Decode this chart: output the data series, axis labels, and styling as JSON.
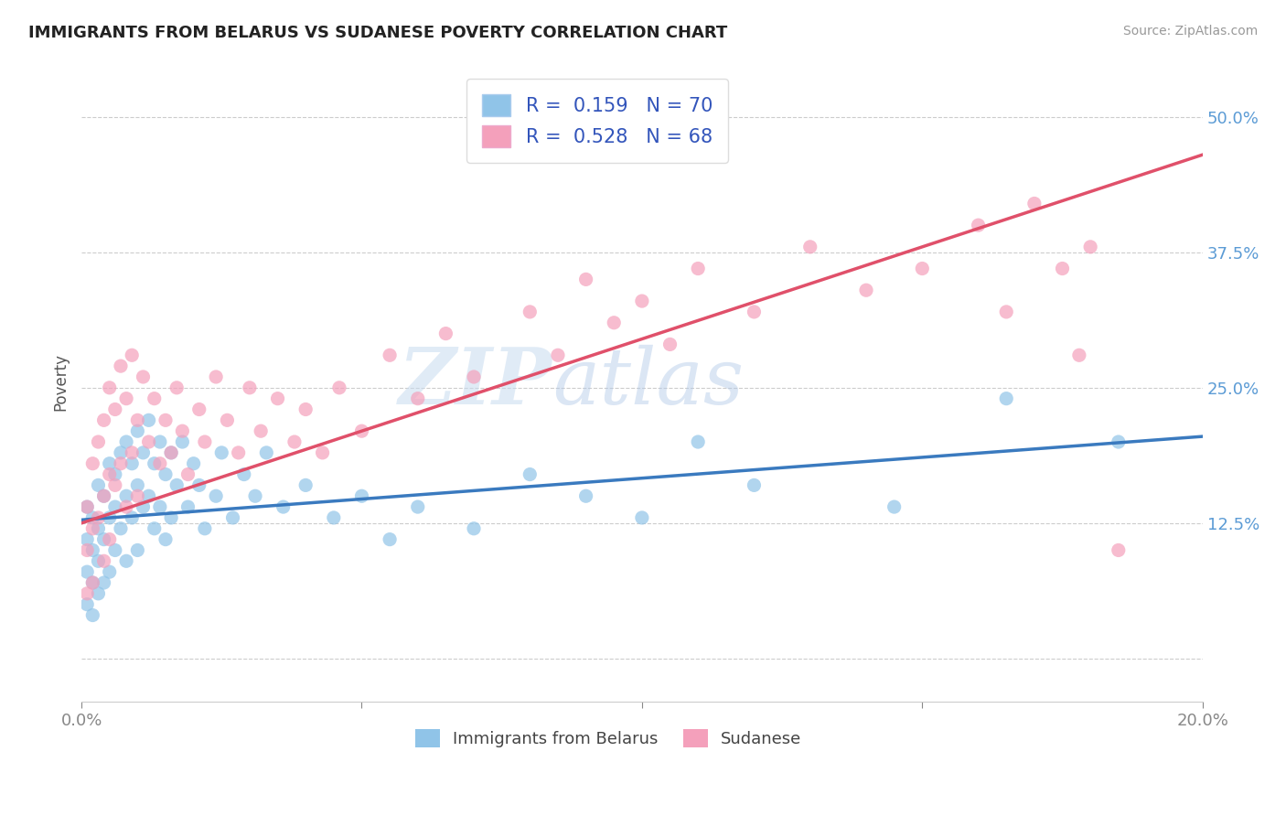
{
  "title": "IMMIGRANTS FROM BELARUS VS SUDANESE POVERTY CORRELATION CHART",
  "source": "Source: ZipAtlas.com",
  "ylabel": "Poverty",
  "xlim": [
    0.0,
    0.2
  ],
  "ylim": [
    -0.04,
    0.55
  ],
  "yticks": [
    0.0,
    0.125,
    0.25,
    0.375,
    0.5
  ],
  "ytick_labels": [
    "",
    "12.5%",
    "25.0%",
    "37.5%",
    "50.0%"
  ],
  "xticks": [
    0.0,
    0.05,
    0.1,
    0.15,
    0.2
  ],
  "xtick_labels": [
    "0.0%",
    "",
    "",
    "",
    "20.0%"
  ],
  "color_blue": "#90c4e8",
  "color_pink": "#f4a0bb",
  "color_blue_line": "#3a7abf",
  "color_pink_line": "#e0506a",
  "watermark_zip": "ZIP",
  "watermark_atlas": "atlas",
  "blue_r": 0.159,
  "blue_n": 70,
  "pink_r": 0.528,
  "pink_n": 68,
  "blue_line_y0": 0.128,
  "blue_line_y1": 0.205,
  "pink_line_y0": 0.125,
  "pink_line_y1": 0.465,
  "blue_scatter_x": [
    0.001,
    0.001,
    0.001,
    0.001,
    0.002,
    0.002,
    0.002,
    0.002,
    0.003,
    0.003,
    0.003,
    0.003,
    0.004,
    0.004,
    0.004,
    0.005,
    0.005,
    0.005,
    0.006,
    0.006,
    0.006,
    0.007,
    0.007,
    0.008,
    0.008,
    0.008,
    0.009,
    0.009,
    0.01,
    0.01,
    0.01,
    0.011,
    0.011,
    0.012,
    0.012,
    0.013,
    0.013,
    0.014,
    0.014,
    0.015,
    0.015,
    0.016,
    0.016,
    0.017,
    0.018,
    0.019,
    0.02,
    0.021,
    0.022,
    0.024,
    0.025,
    0.027,
    0.029,
    0.031,
    0.033,
    0.036,
    0.04,
    0.045,
    0.05,
    0.055,
    0.06,
    0.07,
    0.08,
    0.09,
    0.1,
    0.11,
    0.12,
    0.145,
    0.165,
    0.185
  ],
  "blue_scatter_y": [
    0.14,
    0.11,
    0.08,
    0.05,
    0.13,
    0.1,
    0.07,
    0.04,
    0.16,
    0.12,
    0.09,
    0.06,
    0.15,
    0.11,
    0.07,
    0.18,
    0.13,
    0.08,
    0.17,
    0.14,
    0.1,
    0.19,
    0.12,
    0.2,
    0.15,
    0.09,
    0.18,
    0.13,
    0.21,
    0.16,
    0.1,
    0.19,
    0.14,
    0.22,
    0.15,
    0.18,
    0.12,
    0.2,
    0.14,
    0.17,
    0.11,
    0.19,
    0.13,
    0.16,
    0.2,
    0.14,
    0.18,
    0.16,
    0.12,
    0.15,
    0.19,
    0.13,
    0.17,
    0.15,
    0.19,
    0.14,
    0.16,
    0.13,
    0.15,
    0.11,
    0.14,
    0.12,
    0.17,
    0.15,
    0.13,
    0.2,
    0.16,
    0.14,
    0.24,
    0.2
  ],
  "pink_scatter_x": [
    0.001,
    0.001,
    0.001,
    0.002,
    0.002,
    0.002,
    0.003,
    0.003,
    0.004,
    0.004,
    0.004,
    0.005,
    0.005,
    0.005,
    0.006,
    0.006,
    0.007,
    0.007,
    0.008,
    0.008,
    0.009,
    0.009,
    0.01,
    0.01,
    0.011,
    0.012,
    0.013,
    0.014,
    0.015,
    0.016,
    0.017,
    0.018,
    0.019,
    0.021,
    0.022,
    0.024,
    0.026,
    0.028,
    0.03,
    0.032,
    0.035,
    0.038,
    0.04,
    0.043,
    0.046,
    0.05,
    0.055,
    0.06,
    0.065,
    0.07,
    0.08,
    0.085,
    0.09,
    0.095,
    0.1,
    0.105,
    0.11,
    0.12,
    0.13,
    0.14,
    0.15,
    0.16,
    0.165,
    0.17,
    0.175,
    0.178,
    0.18,
    0.185
  ],
  "pink_scatter_y": [
    0.14,
    0.1,
    0.06,
    0.18,
    0.12,
    0.07,
    0.2,
    0.13,
    0.22,
    0.15,
    0.09,
    0.25,
    0.17,
    0.11,
    0.23,
    0.16,
    0.27,
    0.18,
    0.24,
    0.14,
    0.28,
    0.19,
    0.22,
    0.15,
    0.26,
    0.2,
    0.24,
    0.18,
    0.22,
    0.19,
    0.25,
    0.21,
    0.17,
    0.23,
    0.2,
    0.26,
    0.22,
    0.19,
    0.25,
    0.21,
    0.24,
    0.2,
    0.23,
    0.19,
    0.25,
    0.21,
    0.28,
    0.24,
    0.3,
    0.26,
    0.32,
    0.28,
    0.35,
    0.31,
    0.33,
    0.29,
    0.36,
    0.32,
    0.38,
    0.34,
    0.36,
    0.4,
    0.32,
    0.42,
    0.36,
    0.28,
    0.38,
    0.1
  ]
}
